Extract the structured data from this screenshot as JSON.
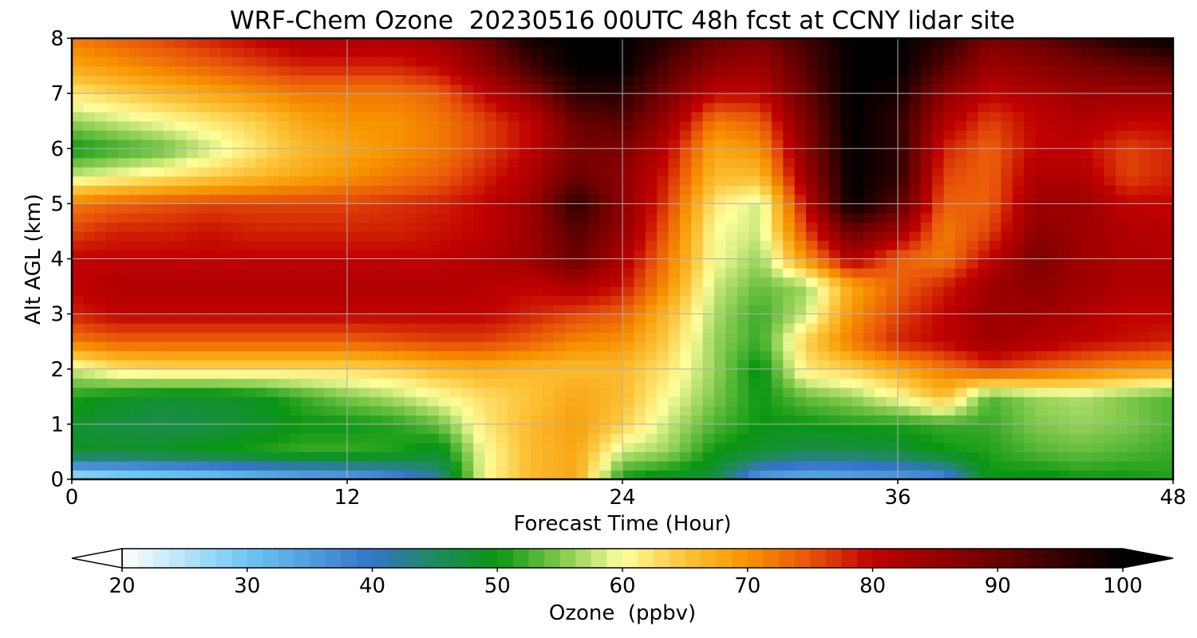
{
  "chart_data": {
    "type": "heatmap",
    "title": "WRF-Chem Ozone  20230516 00UTC 48h fcst at CCNY lidar site",
    "xlabel": "Forecast Time (Hour)",
    "ylabel": "Alt AGL (km)",
    "x_ticks": [
      "0",
      "12",
      "24",
      "36",
      "48"
    ],
    "y_ticks": [
      "0",
      "1",
      "2",
      "3",
      "4",
      "5",
      "6",
      "7",
      "8"
    ],
    "xlim": [
      0,
      48
    ],
    "ylim": [
      0,
      8
    ],
    "grid": true,
    "x_hours": [
      0,
      2,
      4,
      6,
      8,
      10,
      12,
      14,
      16,
      18,
      20,
      22,
      24,
      26,
      28,
      30,
      32,
      34,
      36,
      38,
      40,
      42,
      44,
      46,
      48
    ],
    "y_km": [
      0,
      0.5,
      1,
      1.5,
      2,
      2.5,
      3,
      3.5,
      4,
      4.5,
      5,
      5.5,
      6,
      6.5,
      7,
      7.5,
      8
    ],
    "ozone_ppbv": [
      [
        24,
        26,
        27,
        28,
        30,
        32,
        33,
        36,
        42,
        60,
        66,
        68,
        50,
        48,
        47,
        34,
        32,
        33,
        34,
        36,
        50,
        49,
        50,
        50,
        51
      ],
      [
        49,
        48,
        49,
        50,
        51,
        52,
        52,
        51,
        48,
        60,
        66,
        68,
        58,
        56,
        50,
        48,
        46,
        46,
        47,
        50,
        51,
        53,
        54,
        53,
        52
      ],
      [
        48,
        47,
        46,
        47,
        48,
        50,
        50,
        51,
        54,
        62,
        66,
        69,
        64,
        58,
        53,
        50,
        50,
        51,
        51,
        52,
        52,
        55,
        56,
        55,
        53
      ],
      [
        51,
        49,
        48,
        48,
        49,
        52,
        55,
        57,
        60,
        63,
        65,
        68,
        66,
        60,
        55,
        50,
        54,
        56,
        60,
        66,
        53,
        56,
        57,
        55,
        53
      ],
      [
        58,
        62,
        63,
        63,
        63,
        63,
        63,
        64,
        66,
        67,
        66,
        66,
        66,
        62,
        56,
        49,
        62,
        64,
        68,
        72,
        76,
        74,
        72,
        70,
        69
      ],
      [
        72,
        74,
        74,
        74,
        74,
        74,
        74,
        75,
        76,
        76,
        74,
        71,
        70,
        64,
        56,
        52,
        64,
        72,
        78,
        80,
        84,
        82,
        80,
        79,
        78
      ],
      [
        78,
        80,
        80,
        80,
        80,
        80,
        80,
        80,
        80,
        80,
        78,
        76,
        74,
        66,
        57,
        52,
        58,
        70,
        76,
        80,
        84,
        84,
        82,
        80,
        80
      ],
      [
        80,
        82,
        82,
        82,
        82,
        82,
        82,
        82,
        82,
        81,
        80,
        82,
        79,
        70,
        58,
        54,
        56,
        68,
        74,
        78,
        84,
        86,
        84,
        82,
        82
      ],
      [
        80,
        80,
        80,
        80,
        80,
        80,
        80,
        80,
        80,
        82,
        84,
        90,
        82,
        72,
        60,
        56,
        70,
        82,
        74,
        72,
        80,
        88,
        84,
        82,
        82
      ],
      [
        76,
        78,
        78,
        79,
        78,
        78,
        78,
        78,
        79,
        80,
        84,
        92,
        85,
        74,
        60,
        58,
        76,
        90,
        84,
        72,
        76,
        86,
        84,
        82,
        81
      ],
      [
        72,
        74,
        75,
        76,
        76,
        76,
        76,
        77,
        78,
        80,
        84,
        96,
        86,
        76,
        62,
        58,
        80,
        100,
        92,
        74,
        74,
        84,
        84,
        80,
        80
      ],
      [
        58,
        60,
        62,
        64,
        66,
        68,
        70,
        72,
        74,
        78,
        82,
        90,
        86,
        78,
        66,
        66,
        84,
        100,
        96,
        76,
        74,
        82,
        82,
        76,
        78
      ],
      [
        50,
        52,
        54,
        58,
        62,
        66,
        68,
        70,
        72,
        76,
        80,
        88,
        88,
        80,
        68,
        70,
        86,
        100,
        96,
        78,
        74,
        80,
        80,
        76,
        78
      ],
      [
        56,
        58,
        60,
        62,
        64,
        68,
        70,
        70,
        72,
        76,
        80,
        90,
        92,
        84,
        72,
        74,
        88,
        100,
        96,
        82,
        76,
        80,
        82,
        80,
        80
      ],
      [
        62,
        64,
        66,
        68,
        70,
        72,
        72,
        72,
        74,
        80,
        86,
        96,
        96,
        88,
        80,
        80,
        90,
        100,
        98,
        86,
        80,
        82,
        84,
        84,
        84
      ],
      [
        68,
        70,
        72,
        74,
        76,
        78,
        78,
        78,
        80,
        86,
        94,
        100,
        100,
        92,
        86,
        84,
        92,
        100,
        100,
        92,
        84,
        86,
        88,
        90,
        92
      ],
      [
        72,
        74,
        76,
        78,
        80,
        82,
        82,
        82,
        84,
        90,
        98,
        100,
        100,
        96,
        90,
        88,
        94,
        100,
        100,
        96,
        88,
        90,
        94,
        98,
        100
      ]
    ],
    "colorbar": {
      "label": "Ozone  (ppbv)",
      "min": 20,
      "max": 100,
      "ticks": [
        "20",
        "30",
        "40",
        "50",
        "60",
        "70",
        "80",
        "90",
        "100"
      ],
      "extend": "both",
      "colormap_stops": [
        {
          "value": 20,
          "color": "#ffffff"
        },
        {
          "value": 30,
          "color": "#6ec6f2"
        },
        {
          "value": 40,
          "color": "#3474c8"
        },
        {
          "value": 45,
          "color": "#1f8a5e"
        },
        {
          "value": 50,
          "color": "#0a9612"
        },
        {
          "value": 55,
          "color": "#7ec84a"
        },
        {
          "value": 60,
          "color": "#ffff9c"
        },
        {
          "value": 65,
          "color": "#fcc43a"
        },
        {
          "value": 70,
          "color": "#f79400"
        },
        {
          "value": 75,
          "color": "#e8540a"
        },
        {
          "value": 80,
          "color": "#c00000"
        },
        {
          "value": 90,
          "color": "#6a0000"
        },
        {
          "value": 100,
          "color": "#000000"
        }
      ]
    }
  }
}
